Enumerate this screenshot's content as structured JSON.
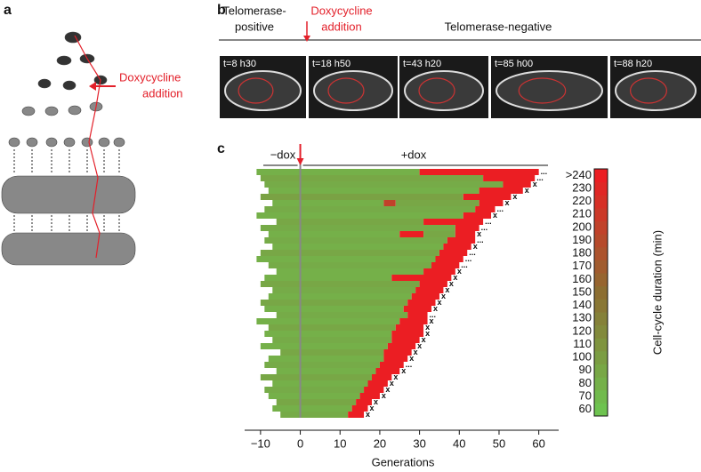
{
  "panel_a": {
    "label": "a",
    "annotation": [
      "Doxycycline",
      "addition"
    ]
  },
  "panel_b": {
    "label": "b",
    "headers": [
      "Telomerase-",
      "positive"
    ],
    "dox": [
      "Doxycycline",
      "addition"
    ],
    "negative": "Telomerase-negative",
    "times": [
      "t=8 h30",
      "t=18 h50",
      "t=43 h20",
      "t=85 h00",
      "t=88 h20"
    ]
  },
  "chart_data": {
    "type": "heatmap",
    "label": "c",
    "xlabel": "Generations",
    "colorbar_label": "Cell-cycle duration (min)",
    "minus_dox": "−dox",
    "plus_dox": "+dox",
    "xlim": [
      -14,
      65
    ],
    "xticks": [
      {
        "value": -10,
        "label": "−10"
      },
      0,
      10,
      20,
      30,
      40,
      50,
      60
    ],
    "clim": [
      60,
      240
    ],
    "cticks": [
      60,
      70,
      80,
      90,
      100,
      110,
      120,
      130,
      140,
      150,
      160,
      170,
      180,
      190,
      200,
      210,
      220,
      230,
      {
        "value": 240,
        "label": ">240"
      }
    ],
    "rows": [
      {
        "runs": [
          [
            -11,
            29,
            80
          ],
          [
            30,
            59,
            240
          ]
        ],
        "mark": "..."
      },
      {
        "runs": [
          [
            -10,
            45,
            90
          ],
          [
            46,
            58,
            240
          ]
        ],
        "mark": "..."
      },
      {
        "runs": [
          [
            -9,
            50,
            85
          ],
          [
            51,
            57,
            240
          ]
        ],
        "mark": "x"
      },
      {
        "runs": [
          [
            -8,
            44,
            80
          ],
          [
            45,
            55,
            240
          ]
        ],
        "mark": "x"
      },
      {
        "runs": [
          [
            -10,
            40,
            95
          ],
          [
            41,
            52,
            240
          ]
        ],
        "mark": "x"
      },
      {
        "runs": [
          [
            -7,
            20,
            80
          ],
          [
            21,
            23,
            200
          ],
          [
            24,
            44,
            90
          ],
          [
            45,
            50,
            240
          ]
        ],
        "mark": "x"
      },
      {
        "runs": [
          [
            -9,
            43,
            85
          ],
          [
            44,
            48,
            240
          ]
        ],
        "mark": "..."
      },
      {
        "runs": [
          [
            -11,
            40,
            80
          ],
          [
            41,
            47,
            240
          ]
        ],
        "mark": "x"
      },
      {
        "runs": [
          [
            -6,
            30,
            90
          ],
          [
            31,
            45,
            240
          ]
        ],
        "mark": "..."
      },
      {
        "runs": [
          [
            -10,
            38,
            85
          ],
          [
            39,
            44,
            240
          ]
        ],
        "mark": "..."
      },
      {
        "runs": [
          [
            -8,
            24,
            80
          ],
          [
            25,
            30,
            240
          ],
          [
            31,
            38,
            90
          ],
          [
            39,
            43,
            240
          ]
        ],
        "mark": "x"
      },
      {
        "runs": [
          [
            -9,
            36,
            85
          ],
          [
            37,
            43,
            240
          ]
        ],
        "mark": "..."
      },
      {
        "runs": [
          [
            -7,
            35,
            80
          ],
          [
            36,
            42,
            240
          ]
        ],
        "mark": "x"
      },
      {
        "runs": [
          [
            -10,
            34,
            90
          ],
          [
            35,
            41,
            240
          ]
        ],
        "mark": "..."
      },
      {
        "runs": [
          [
            -11,
            33,
            80
          ],
          [
            34,
            40,
            240
          ]
        ],
        "mark": "..."
      },
      {
        "runs": [
          [
            -8,
            32,
            85
          ],
          [
            33,
            39,
            240
          ]
        ],
        "mark": "..."
      },
      {
        "runs": [
          [
            -6,
            30,
            80
          ],
          [
            31,
            38,
            240
          ]
        ],
        "mark": "x"
      },
      {
        "runs": [
          [
            -9,
            22,
            80
          ],
          [
            23,
            37,
            240
          ]
        ],
        "mark": "x"
      },
      {
        "runs": [
          [
            -10,
            29,
            90
          ],
          [
            30,
            36,
            240
          ]
        ],
        "mark": "x"
      },
      {
        "runs": [
          [
            -7,
            28,
            85
          ],
          [
            29,
            35,
            240
          ]
        ],
        "mark": "x"
      },
      {
        "runs": [
          [
            -8,
            27,
            80
          ],
          [
            28,
            34,
            240
          ]
        ],
        "mark": "x"
      },
      {
        "runs": [
          [
            -10,
            26,
            90
          ],
          [
            27,
            33,
            240
          ]
        ],
        "mark": "x"
      },
      {
        "runs": [
          [
            -9,
            25,
            80
          ],
          [
            26,
            32,
            240
          ]
        ],
        "mark": "x"
      },
      {
        "runs": [
          [
            -6,
            26,
            85
          ],
          [
            27,
            31,
            240
          ]
        ],
        "mark": "..."
      },
      {
        "runs": [
          [
            -11,
            24,
            80
          ],
          [
            25,
            31,
            240
          ]
        ],
        "mark": "x"
      },
      {
        "runs": [
          [
            -8,
            23,
            90
          ],
          [
            24,
            30,
            240
          ]
        ],
        "mark": "x"
      },
      {
        "runs": [
          [
            -9,
            22,
            80
          ],
          [
            23,
            30,
            240
          ]
        ],
        "mark": "x"
      },
      {
        "runs": [
          [
            -7,
            22,
            85
          ],
          [
            23,
            29,
            240
          ]
        ],
        "mark": "x"
      },
      {
        "runs": [
          [
            -10,
            21,
            80
          ],
          [
            22,
            28,
            240
          ]
        ],
        "mark": "x"
      },
      {
        "runs": [
          [
            -5,
            20,
            90
          ],
          [
            21,
            27,
            240
          ]
        ],
        "mark": "x"
      },
      {
        "runs": [
          [
            -8,
            20,
            80
          ],
          [
            21,
            26,
            240
          ]
        ],
        "mark": "x"
      },
      {
        "runs": [
          [
            -9,
            19,
            85
          ],
          [
            20,
            25,
            240
          ]
        ],
        "mark": "..."
      },
      {
        "runs": [
          [
            -6,
            18,
            80
          ],
          [
            19,
            24,
            240
          ]
        ],
        "mark": "x"
      },
      {
        "runs": [
          [
            -10,
            17,
            90
          ],
          [
            18,
            22,
            240
          ]
        ],
        "mark": "x"
      },
      {
        "runs": [
          [
            -7,
            16,
            80
          ],
          [
            17,
            21,
            240
          ]
        ],
        "mark": "x"
      },
      {
        "runs": [
          [
            -9,
            15,
            85
          ],
          [
            16,
            20,
            240
          ]
        ],
        "mark": "x"
      },
      {
        "runs": [
          [
            -8,
            14,
            80
          ],
          [
            15,
            19,
            240
          ]
        ],
        "mark": "x"
      },
      {
        "runs": [
          [
            -6,
            13,
            90
          ],
          [
            14,
            17,
            240
          ]
        ],
        "mark": "x"
      },
      {
        "runs": [
          [
            -7,
            12,
            80
          ],
          [
            13,
            16,
            240
          ]
        ],
        "mark": "x"
      },
      {
        "runs": [
          [
            -5,
            11,
            85
          ],
          [
            12,
            15,
            240
          ]
        ],
        "mark": "x"
      }
    ]
  }
}
